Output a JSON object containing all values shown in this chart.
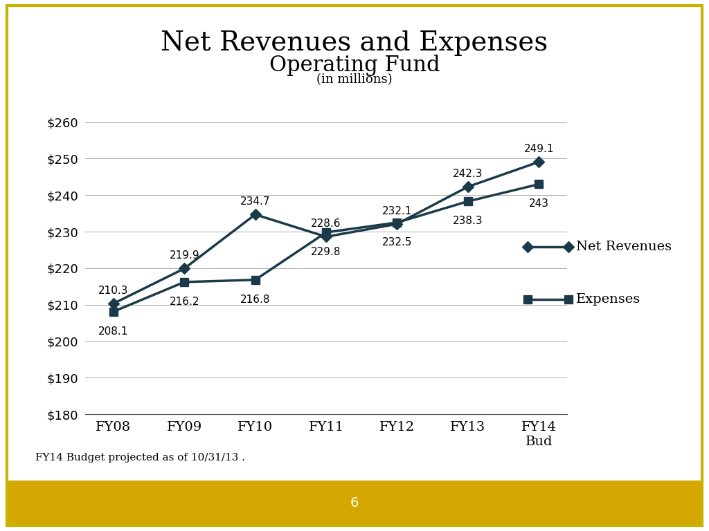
{
  "title": "Net Revenues and Expenses",
  "subtitle": "Operating Fund",
  "subtitle2": "(in millions)",
  "categories": [
    "FY08",
    "FY09",
    "FY10",
    "FY11",
    "FY12",
    "FY13",
    "FY14\nBud"
  ],
  "net_revenues": [
    210.3,
    219.9,
    234.7,
    228.6,
    232.1,
    242.3,
    249.1
  ],
  "expenses": [
    208.1,
    216.2,
    216.8,
    229.8,
    232.5,
    238.3,
    243.0
  ],
  "net_revenues_labels": [
    "210.3",
    "219.9",
    "234.7",
    "228.6",
    "232.1",
    "242.3",
    "249.1"
  ],
  "expenses_labels": [
    "208.1",
    "216.2",
    "216.8",
    "229.8",
    "232.5",
    "238.3",
    "243"
  ],
  "line_color": "#1a3a4a",
  "ylim": [
    180,
    260
  ],
  "yticks": [
    180,
    190,
    200,
    210,
    220,
    230,
    240,
    250,
    260
  ],
  "footnote": "FY14 Budget projected as of 10/31/13 .",
  "legend_labels": [
    "Net Revenues",
    "Expenses"
  ],
  "background_color": "#ffffff",
  "border_color": "#c8b400",
  "footer_color": "#d4a800",
  "footer_text_color": "#ffffff",
  "page_number": "6",
  "title_fontsize": 28,
  "subtitle_fontsize": 22,
  "subtitle2_fontsize": 13,
  "axis_label_fontsize": 13,
  "data_label_fontsize": 11,
  "legend_fontsize": 14,
  "footnote_fontsize": 11
}
